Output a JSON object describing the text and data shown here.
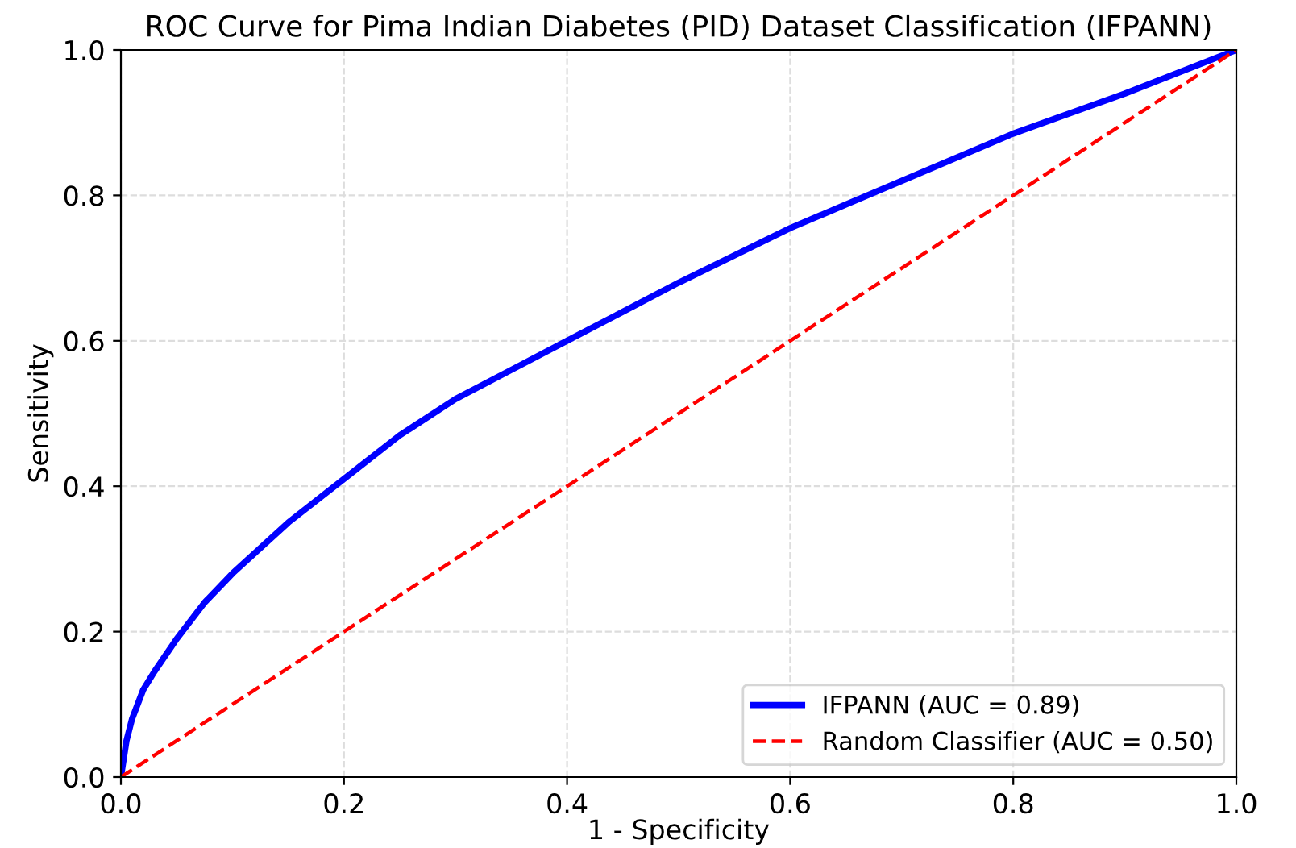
{
  "chart_data": {
    "type": "line",
    "title": "ROC Curve for Pima Indian Diabetes (PID) Dataset Classification (IFPANN)",
    "xlabel": "1 - Specificity",
    "ylabel": "Sensitivity",
    "xlim": [
      0,
      1
    ],
    "ylim": [
      0,
      1
    ],
    "xticks": [
      {
        "value": 0,
        "label": "0.0"
      },
      0.2,
      0.4,
      0.6,
      0.8,
      {
        "value": 1,
        "label": "1.0"
      }
    ],
    "yticks": [
      {
        "value": 0,
        "label": "0.0"
      },
      0.2,
      0.4,
      0.6,
      0.8,
      {
        "value": 1,
        "label": "1.0"
      }
    ],
    "grid": true,
    "legend": "bottom right",
    "series": [
      {
        "name": "IFPANN (AUC = 0.89)",
        "color": "#0000ff",
        "line_style": "solid",
        "x": [
          0,
          0.005,
          0.01,
          0.02,
          0.03,
          0.05,
          0.075,
          0.1,
          0.15,
          0.2,
          0.25,
          0.3,
          0.35,
          0.4,
          0.45,
          0.5,
          0.6,
          0.7,
          0.8,
          0.9,
          1.0
        ],
        "values": [
          0,
          0.05,
          0.08,
          0.12,
          0.145,
          0.19,
          0.24,
          0.28,
          0.35,
          0.41,
          0.47,
          0.52,
          0.56,
          0.6,
          0.64,
          0.68,
          0.755,
          0.82,
          0.885,
          0.94,
          1.0
        ]
      },
      {
        "name": "Random Classifier (AUC = 0.50)",
        "color": "#ff0000",
        "line_style": "dashed",
        "x": [
          0,
          1
        ],
        "values": [
          0,
          1
        ]
      }
    ]
  }
}
